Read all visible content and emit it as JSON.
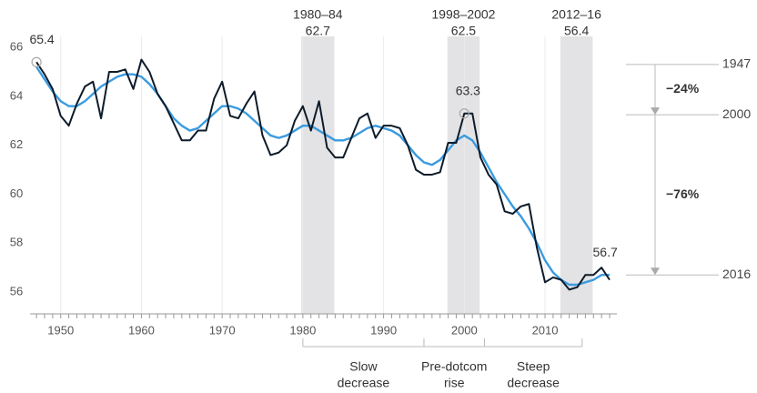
{
  "chart_data": {
    "type": "line",
    "x": [
      1947,
      1948,
      1949,
      1950,
      1951,
      1952,
      1953,
      1954,
      1955,
      1956,
      1957,
      1958,
      1959,
      1960,
      1961,
      1962,
      1963,
      1964,
      1965,
      1966,
      1967,
      1968,
      1969,
      1970,
      1971,
      1972,
      1973,
      1974,
      1975,
      1976,
      1977,
      1978,
      1979,
      1980,
      1981,
      1982,
      1983,
      1984,
      1985,
      1986,
      1987,
      1988,
      1989,
      1990,
      1991,
      1992,
      1993,
      1994,
      1995,
      1996,
      1997,
      1998,
      1999,
      2000,
      2001,
      2002,
      2003,
      2004,
      2005,
      2006,
      2007,
      2008,
      2009,
      2010,
      2011,
      2012,
      2013,
      2014,
      2015,
      2016,
      2017,
      2018
    ],
    "series": [
      {
        "color": "#3a9be0",
        "values": [
          65.2,
          64.7,
          64.2,
          63.8,
          63.6,
          63.6,
          63.8,
          64.1,
          64.4,
          64.6,
          64.8,
          64.9,
          64.9,
          64.8,
          64.5,
          64.1,
          63.6,
          63.1,
          62.8,
          62.6,
          62.7,
          63.0,
          63.3,
          63.6,
          63.6,
          63.5,
          63.3,
          63.0,
          62.7,
          62.4,
          62.3,
          62.4,
          62.6,
          62.8,
          62.8,
          62.6,
          62.4,
          62.2,
          62.2,
          62.3,
          62.5,
          62.7,
          62.8,
          62.7,
          62.6,
          62.4,
          62.0,
          61.6,
          61.3,
          61.2,
          61.4,
          61.8,
          62.2,
          62.4,
          62.2,
          61.7,
          61.1,
          60.5,
          60.0,
          59.5,
          59.1,
          58.6,
          58.0,
          57.3,
          56.8,
          56.5,
          56.3,
          56.3,
          56.4,
          56.5,
          56.7,
          56.7
        ]
      },
      {
        "color": "#0d1b2a",
        "values": [
          65.4,
          64.9,
          64.3,
          63.2,
          62.8,
          63.7,
          64.4,
          64.6,
          63.1,
          65.0,
          65.0,
          65.1,
          64.3,
          65.5,
          65.0,
          64.1,
          63.6,
          62.9,
          62.2,
          62.2,
          62.6,
          62.6,
          63.9,
          64.6,
          63.2,
          63.1,
          63.7,
          64.2,
          62.4,
          61.6,
          61.7,
          62.0,
          63.0,
          63.6,
          62.6,
          63.8,
          61.9,
          61.5,
          61.5,
          62.3,
          63.1,
          63.3,
          62.3,
          62.8,
          62.8,
          62.7,
          62.0,
          61.0,
          60.8,
          60.8,
          60.9,
          62.1,
          62.1,
          63.3,
          63.3,
          61.5,
          60.8,
          60.4,
          59.3,
          59.2,
          59.5,
          59.6,
          57.8,
          56.4,
          56.6,
          56.5,
          56.1,
          56.2,
          56.7,
          56.7,
          57.0,
          56.5
        ]
      }
    ],
    "xlim": [
      1946.2,
      2018.9
    ],
    "ylim": [
      55.11,
      66.45
    ],
    "xticks": [
      1950,
      1960,
      1970,
      1980,
      1990,
      2000,
      2010
    ],
    "xminor": [
      1947,
      1948,
      1949,
      1950,
      1951,
      1952,
      1953,
      1954,
      1955,
      1956,
      1957,
      1958,
      1959,
      1960,
      1961,
      1962,
      1963,
      1964,
      1965,
      1966,
      1967,
      1968,
      1969,
      1970,
      1971,
      1972,
      1973,
      1974,
      1975,
      1976,
      1977,
      1978,
      1979,
      1980,
      1981,
      1982,
      1983,
      1984,
      1985,
      1986,
      1987,
      1988,
      1989,
      1990,
      1991,
      1992,
      1993,
      1994,
      1995,
      1996,
      1997,
      1998,
      1999,
      2000,
      2001,
      2002,
      2003,
      2004,
      2005,
      2006,
      2007,
      2008,
      2009,
      2010,
      2011,
      2012,
      2013,
      2014,
      2015,
      2016,
      2017,
      2018
    ],
    "yticks": [
      56,
      58,
      60,
      62,
      64,
      66
    ],
    "bands": [
      {
        "label": "1980–84",
        "start": 1979.8,
        "end": 1983.9,
        "value": 62.7
      },
      {
        "label": "1998–2002",
        "start": 1997.9,
        "end": 2001.9,
        "value": 62.5
      },
      {
        "label": "2012–16",
        "start": 2011.9,
        "end": 2015.9,
        "value": 56.4
      }
    ],
    "annotations": [
      {
        "x": 1947,
        "y": 65.4,
        "circle": true
      },
      {
        "x": 2000,
        "y": 63.3,
        "circle": true
      },
      {
        "x": 2017,
        "y": 56.7,
        "circle": false
      }
    ],
    "reference_lines": [
      {
        "label": 1947,
        "y": 65.3
      },
      {
        "label": 2000,
        "y": 63.25
      },
      {
        "label": 2016,
        "y": 56.7
      }
    ],
    "changes": [
      {
        "value": -24,
        "label": "−24%"
      },
      {
        "value": -76,
        "label": "−76%"
      }
    ],
    "periods": [
      {
        "start": 1980,
        "end": 1995,
        "label": [
          "Slow",
          "decrease"
        ]
      },
      {
        "start": 1995,
        "end": 2002.5,
        "label": [
          "Pre-dotcom",
          "rise"
        ]
      },
      {
        "start": 2002.5,
        "end": 2014.6,
        "label": [
          "Steep",
          "decrease"
        ]
      }
    ]
  }
}
